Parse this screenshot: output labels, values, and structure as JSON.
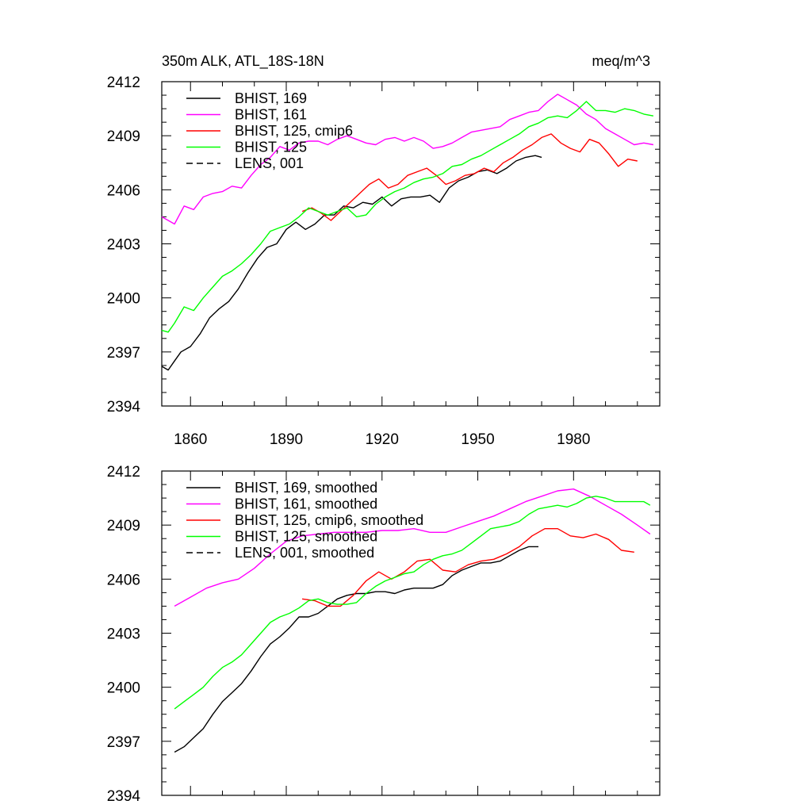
{
  "header": {
    "title": "350m ALK, ATL_18S-18N",
    "units": "meq/m^3"
  },
  "chart_data": [
    {
      "type": "line",
      "xlim": [
        1851,
        2007
      ],
      "ylim": [
        2394,
        2412
      ],
      "x_ticks": [
        1860,
        1890,
        1920,
        1950,
        1980
      ],
      "y_ticks": [
        2394,
        2397,
        2400,
        2403,
        2406,
        2409,
        2412
      ],
      "legend_position": "top-left",
      "series": [
        {
          "name": "BHIST, 169",
          "color": "#000000",
          "dash": "solid",
          "x": [
            1851,
            1853,
            1855,
            1857,
            1860,
            1863,
            1866,
            1869,
            1872,
            1875,
            1878,
            1881,
            1884,
            1887,
            1890,
            1893,
            1896,
            1899,
            1902,
            1905,
            1908,
            1911,
            1914,
            1917,
            1920,
            1923,
            1926,
            1929,
            1932,
            1935,
            1938,
            1941,
            1944,
            1947,
            1950,
            1953,
            1956,
            1959,
            1962,
            1965,
            1968,
            1970
          ],
          "y": [
            2396.2,
            2396,
            2396.5,
            2397,
            2397.3,
            2398,
            2398.9,
            2399.4,
            2399.8,
            2400.5,
            2401.4,
            2402.2,
            2402.8,
            2403.0,
            2403.8,
            2404.2,
            2403.8,
            2404.1,
            2404.6,
            2404.6,
            2405.1,
            2405.0,
            2405.3,
            2405.2,
            2405.6,
            2405.1,
            2405.5,
            2405.6,
            2405.6,
            2405.7,
            2405.3,
            2406.1,
            2406.5,
            2406.7,
            2407.0,
            2407.1,
            2406.9,
            2407.2,
            2407.6,
            2407.8,
            2407.9,
            2407.8
          ]
        },
        {
          "name": "BHIST, 161",
          "color": "#ff00ff",
          "dash": "solid",
          "x": [
            1851,
            1855,
            1858,
            1861,
            1864,
            1867,
            1870,
            1873,
            1876,
            1879,
            1882,
            1885,
            1888,
            1891,
            1894,
            1897,
            1900,
            1903,
            1906,
            1909,
            1912,
            1915,
            1918,
            1921,
            1924,
            1927,
            1930,
            1933,
            1936,
            1939,
            1942,
            1945,
            1948,
            1951,
            1954,
            1957,
            1960,
            1963,
            1966,
            1969,
            1972,
            1975,
            1978,
            1981,
            1984,
            1987,
            1990,
            1993,
            1996,
            1999,
            2002,
            2005
          ],
          "y": [
            2404.5,
            2404.1,
            2405.1,
            2404.9,
            2405.6,
            2405.8,
            2405.9,
            2406.2,
            2406.1,
            2406.8,
            2407.4,
            2407.8,
            2408.4,
            2408.2,
            2408.6,
            2408.7,
            2408.7,
            2408.5,
            2408.8,
            2409.0,
            2408.8,
            2408.6,
            2408.5,
            2408.8,
            2408.9,
            2408.7,
            2408.9,
            2408.7,
            2408.3,
            2408.4,
            2408.6,
            2408.9,
            2409.2,
            2409.3,
            2409.4,
            2409.5,
            2409.9,
            2410.1,
            2410.3,
            2410.4,
            2410.9,
            2411.3,
            2411.0,
            2410.7,
            2410.2,
            2409.9,
            2409.4,
            2409.1,
            2408.8,
            2408.5,
            2408.6,
            2408.5
          ]
        },
        {
          "name": "BHIST, 125, cmip6",
          "color": "#ff0000",
          "dash": "solid",
          "x": [
            1895,
            1898,
            1901,
            1904,
            1907,
            1910,
            1913,
            1916,
            1919,
            1922,
            1925,
            1928,
            1931,
            1934,
            1937,
            1940,
            1943,
            1946,
            1949,
            1952,
            1955,
            1958,
            1961,
            1964,
            1967,
            1970,
            1973,
            1976,
            1979,
            1982,
            1985,
            1988,
            1991,
            1994,
            1997,
            2000
          ],
          "y": [
            2404.8,
            2405.0,
            2404.7,
            2404.3,
            2404.8,
            2405.3,
            2405.8,
            2406.3,
            2406.6,
            2406.1,
            2406.3,
            2406.8,
            2407.0,
            2407.2,
            2406.8,
            2406.3,
            2406.5,
            2406.8,
            2406.9,
            2407.2,
            2407.0,
            2407.5,
            2407.8,
            2408.2,
            2408.5,
            2408.9,
            2409.1,
            2408.6,
            2408.3,
            2408.1,
            2408.8,
            2408.6,
            2408.0,
            2407.3,
            2407.7,
            2407.6
          ]
        },
        {
          "name": "BHIST, 125",
          "color": "#00ff00",
          "dash": "solid",
          "x": [
            1851,
            1853,
            1855,
            1858,
            1861,
            1864,
            1867,
            1870,
            1873,
            1876,
            1879,
            1882,
            1885,
            1888,
            1891,
            1894,
            1897,
            1900,
            1903,
            1906,
            1909,
            1912,
            1915,
            1918,
            1921,
            1924,
            1927,
            1930,
            1933,
            1936,
            1939,
            1942,
            1945,
            1948,
            1951,
            1954,
            1957,
            1960,
            1963,
            1966,
            1969,
            1972,
            1975,
            1978,
            1981,
            1984,
            1987,
            1990,
            1993,
            1996,
            1999,
            2002,
            2005
          ],
          "y": [
            2398.2,
            2398.1,
            2398.6,
            2399.5,
            2399.3,
            2400.0,
            2400.6,
            2401.2,
            2401.5,
            2401.9,
            2402.4,
            2403.0,
            2403.7,
            2403.9,
            2404.1,
            2404.5,
            2405.0,
            2404.8,
            2404.6,
            2404.8,
            2405.0,
            2404.5,
            2404.6,
            2405.2,
            2405.6,
            2405.9,
            2406.1,
            2406.4,
            2406.6,
            2406.7,
            2406.9,
            2407.3,
            2407.4,
            2407.7,
            2407.9,
            2408.2,
            2408.5,
            2408.8,
            2409.1,
            2409.5,
            2409.7,
            2410.0,
            2410.1,
            2410.0,
            2410.4,
            2410.9,
            2410.4,
            2410.4,
            2410.3,
            2410.5,
            2410.4,
            2410.2,
            2410.1
          ]
        },
        {
          "name": "LENS, 001",
          "color": "#000000",
          "dash": "dashed",
          "x": [],
          "y": []
        }
      ]
    },
    {
      "type": "line",
      "xlim": [
        1851,
        2007
      ],
      "ylim": [
        2394,
        2412
      ],
      "x_ticks": [
        1860,
        1890,
        1920,
        1950,
        1980
      ],
      "y_ticks": [
        2394,
        2397,
        2400,
        2403,
        2406,
        2409,
        2412
      ],
      "legend_position": "top-left",
      "series": [
        {
          "name": "BHIST, 169, smoothed",
          "color": "#000000",
          "dash": "solid",
          "x": [
            1855,
            1858,
            1861,
            1864,
            1867,
            1870,
            1873,
            1876,
            1879,
            1882,
            1885,
            1888,
            1891,
            1894,
            1897,
            1900,
            1903,
            1906,
            1909,
            1912,
            1915,
            1918,
            1921,
            1924,
            1927,
            1930,
            1933,
            1936,
            1939,
            1942,
            1945,
            1948,
            1951,
            1954,
            1957,
            1960,
            1963,
            1966,
            1969
          ],
          "y": [
            2396.4,
            2396.7,
            2397.2,
            2397.7,
            2398.5,
            2399.2,
            2399.7,
            2400.2,
            2400.9,
            2401.7,
            2402.4,
            2402.8,
            2403.3,
            2403.9,
            2403.9,
            2404.1,
            2404.5,
            2404.9,
            2405.1,
            2405.2,
            2405.2,
            2405.3,
            2405.3,
            2405.2,
            2405.4,
            2405.5,
            2405.5,
            2405.5,
            2405.7,
            2406.2,
            2406.5,
            2406.7,
            2406.9,
            2406.9,
            2407.0,
            2407.3,
            2407.6,
            2407.8,
            2407.8
          ]
        },
        {
          "name": "BHIST, 161, smoothed",
          "color": "#ff00ff",
          "dash": "solid",
          "x": [
            1855,
            1860,
            1865,
            1870,
            1875,
            1880,
            1885,
            1890,
            1895,
            1900,
            1905,
            1910,
            1915,
            1920,
            1925,
            1930,
            1935,
            1940,
            1945,
            1950,
            1955,
            1960,
            1965,
            1970,
            1975,
            1980,
            1985,
            1990,
            1995,
            2000,
            2004
          ],
          "y": [
            2404.5,
            2405.0,
            2405.5,
            2405.8,
            2406.0,
            2406.6,
            2407.4,
            2408.1,
            2408.4,
            2408.5,
            2408.6,
            2408.6,
            2408.6,
            2408.7,
            2408.7,
            2408.8,
            2408.6,
            2408.6,
            2408.9,
            2409.2,
            2409.5,
            2409.9,
            2410.3,
            2410.6,
            2410.9,
            2411.0,
            2410.6,
            2410.1,
            2409.6,
            2409.0,
            2408.5
          ]
        },
        {
          "name": "BHIST, 125, cmip6, smoothed",
          "color": "#ff0000",
          "dash": "solid",
          "x": [
            1895,
            1899,
            1903,
            1907,
            1911,
            1915,
            1919,
            1923,
            1927,
            1931,
            1935,
            1939,
            1943,
            1947,
            1951,
            1955,
            1959,
            1963,
            1967,
            1971,
            1975,
            1979,
            1983,
            1987,
            1991,
            1995,
            1999
          ],
          "y": [
            2404.9,
            2404.8,
            2404.5,
            2404.5,
            2405.1,
            2405.9,
            2406.4,
            2406.0,
            2406.4,
            2407.0,
            2407.1,
            2406.5,
            2406.4,
            2406.8,
            2407.0,
            2407.1,
            2407.4,
            2407.8,
            2408.4,
            2408.8,
            2408.8,
            2408.4,
            2408.3,
            2408.5,
            2408.2,
            2407.6,
            2407.5
          ]
        },
        {
          "name": "BHIST, 125, smoothed",
          "color": "#00ff00",
          "dash": "solid",
          "x": [
            1855,
            1858,
            1861,
            1864,
            1867,
            1870,
            1873,
            1876,
            1879,
            1882,
            1885,
            1888,
            1891,
            1894,
            1897,
            1900,
            1903,
            1906,
            1909,
            1912,
            1915,
            1918,
            1921,
            1924,
            1927,
            1930,
            1933,
            1936,
            1939,
            1942,
            1945,
            1948,
            1951,
            1954,
            1957,
            1960,
            1963,
            1966,
            1969,
            1972,
            1975,
            1978,
            1981,
            1984,
            1987,
            1990,
            1993,
            1996,
            1999,
            2002,
            2004
          ],
          "y": [
            2398.8,
            2399.2,
            2399.6,
            2400.0,
            2400.6,
            2401.1,
            2401.4,
            2401.8,
            2402.4,
            2403.0,
            2403.6,
            2403.9,
            2404.1,
            2404.4,
            2404.8,
            2404.9,
            2404.7,
            2404.6,
            2404.6,
            2404.7,
            2405.2,
            2405.6,
            2405.9,
            2406.1,
            2406.3,
            2406.4,
            2406.8,
            2407.1,
            2407.3,
            2407.4,
            2407.6,
            2408.0,
            2408.4,
            2408.8,
            2408.9,
            2409.0,
            2409.2,
            2409.6,
            2409.9,
            2410.0,
            2410.1,
            2410.0,
            2410.2,
            2410.5,
            2410.6,
            2410.5,
            2410.3,
            2410.3,
            2410.3,
            2410.3,
            2410.1
          ]
        },
        {
          "name": "LENS, 001, smoothed",
          "color": "#000000",
          "dash": "dashed",
          "x": [],
          "y": []
        }
      ]
    }
  ]
}
